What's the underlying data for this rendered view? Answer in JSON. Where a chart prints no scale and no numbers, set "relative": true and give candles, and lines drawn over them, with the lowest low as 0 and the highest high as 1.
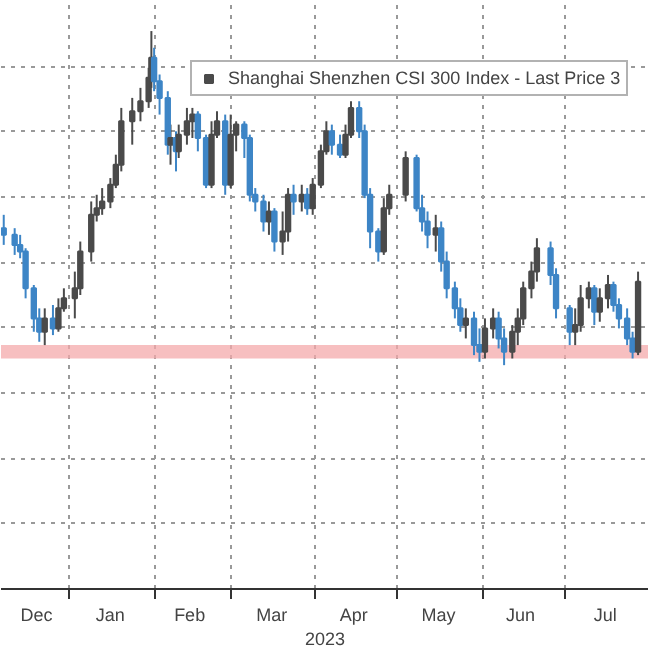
{
  "chart_data": {
    "type": "candlestick",
    "relative": true,
    "xlabel": "2023",
    "legend": "top right",
    "grid": true,
    "xlim": [
      "2022-12-07",
      "2023-08-01"
    ],
    "xticks": [
      {
        "value": "2022-12-20",
        "label": "Dec"
      },
      {
        "value": "2023-01-01",
        "label": null
      },
      {
        "value": "2023-01-16",
        "label": "Jan"
      },
      {
        "value": "2023-02-01",
        "label": null
      },
      {
        "value": "2023-02-14",
        "label": "Feb"
      },
      {
        "value": "2023-03-01",
        "label": null
      },
      {
        "value": "2023-03-16",
        "label": "Mar"
      },
      {
        "value": "2023-04-01",
        "label": null
      },
      {
        "value": "2023-04-15",
        "label": "Apr"
      },
      {
        "value": "2023-05-01",
        "label": null
      },
      {
        "value": "2023-05-16",
        "label": "May"
      },
      {
        "value": "2023-06-01",
        "label": null
      },
      {
        "value": "2023-06-15",
        "label": "Jun"
      },
      {
        "value": "2023-07-01",
        "label": null
      },
      {
        "value": "2023-07-16",
        "label": "Jul"
      }
    ],
    "bands": [
      {
        "axis": "y",
        "from": 0.02,
        "to": 0.06,
        "color": "#f4a9ab"
      }
    ],
    "series": [
      {
        "name": "Shanghai Shenzhen CSI 300 Index - Last Price 3",
        "color": "#4a4a4a",
        "x": [
          "2022-12-08",
          "2022-12-12",
          "2022-12-14",
          "2022-12-16",
          "2022-12-19",
          "2022-12-21",
          "2022-12-23",
          "2022-12-26",
          "2022-12-28",
          "2022-12-30",
          "2023-01-03",
          "2023-01-05",
          "2023-01-09",
          "2023-01-11",
          "2023-01-13",
          "2023-01-16",
          "2023-01-18",
          "2023-01-20",
          "2023-01-24",
          "2023-01-27",
          "2023-01-30",
          "2023-01-31",
          "2023-02-01",
          "2023-02-03",
          "2023-02-06",
          "2023-02-07",
          "2023-02-09",
          "2023-02-10",
          "2023-02-13",
          "2023-02-15",
          "2023-02-17",
          "2023-02-20",
          "2023-02-22",
          "2023-02-24",
          "2023-02-27",
          "2023-03-01",
          "2023-03-03",
          "2023-03-06",
          "2023-03-08",
          "2023-03-10",
          "2023-03-13",
          "2023-03-15",
          "2023-03-17",
          "2023-03-20",
          "2023-03-22",
          "2023-03-24",
          "2023-03-27",
          "2023-03-29",
          "2023-03-31",
          "2023-04-03",
          "2023-04-05",
          "2023-04-07",
          "2023-04-10",
          "2023-04-12",
          "2023-04-14",
          "2023-04-17",
          "2023-04-19",
          "2023-04-21",
          "2023-04-24",
          "2023-04-26",
          "2023-04-28",
          "2023-05-04",
          "2023-05-08",
          "2023-05-10",
          "2023-05-12",
          "2023-05-15",
          "2023-05-17",
          "2023-05-19",
          "2023-05-22",
          "2023-05-24",
          "2023-05-26",
          "2023-05-29",
          "2023-05-31",
          "2023-06-02",
          "2023-06-05",
          "2023-06-07",
          "2023-06-09",
          "2023-06-12",
          "2023-06-14",
          "2023-06-16",
          "2023-06-19",
          "2023-06-21",
          "2023-06-26",
          "2023-06-28",
          "2023-07-03",
          "2023-07-05",
          "2023-07-07",
          "2023-07-10",
          "2023-07-12",
          "2023-07-14",
          "2023-07-17",
          "2023-07-19",
          "2023-07-21",
          "2023-07-24",
          "2023-07-26",
          "2023-07-28"
        ],
        "ohlc": [
          [
            0.41,
            0.45,
            0.36,
            0.39
          ],
          [
            0.39,
            0.41,
            0.33,
            0.36
          ],
          [
            0.36,
            0.39,
            0.32,
            0.34
          ],
          [
            0.34,
            0.35,
            0.2,
            0.23
          ],
          [
            0.23,
            0.24,
            0.1,
            0.14
          ],
          [
            0.14,
            0.17,
            0.07,
            0.1
          ],
          [
            0.1,
            0.17,
            0.06,
            0.14
          ],
          [
            0.14,
            0.18,
            0.09,
            0.11
          ],
          [
            0.11,
            0.2,
            0.1,
            0.17
          ],
          [
            0.17,
            0.23,
            0.16,
            0.2
          ],
          [
            0.2,
            0.28,
            0.14,
            0.23
          ],
          [
            0.23,
            0.37,
            0.21,
            0.34
          ],
          [
            0.34,
            0.49,
            0.31,
            0.45
          ],
          [
            0.45,
            0.51,
            0.43,
            0.47
          ],
          [
            0.47,
            0.53,
            0.45,
            0.49
          ],
          [
            0.49,
            0.56,
            0.47,
            0.54
          ],
          [
            0.54,
            0.63,
            0.53,
            0.6
          ],
          [
            0.6,
            0.77,
            0.58,
            0.73
          ],
          [
            0.73,
            0.8,
            0.66,
            0.76
          ],
          [
            0.76,
            0.83,
            0.73,
            0.79
          ],
          [
            0.79,
            0.89,
            0.77,
            0.86
          ],
          [
            0.86,
            1.0,
            0.83,
            0.92
          ],
          [
            0.92,
            0.95,
            0.82,
            0.85
          ],
          [
            0.85,
            0.87,
            0.75,
            0.8
          ],
          [
            0.8,
            0.82,
            0.63,
            0.66
          ],
          [
            0.66,
            0.72,
            0.6,
            0.68
          ],
          [
            0.68,
            0.7,
            0.58,
            0.64
          ],
          [
            0.64,
            0.72,
            0.62,
            0.69
          ],
          [
            0.69,
            0.77,
            0.66,
            0.73
          ],
          [
            0.73,
            0.77,
            0.68,
            0.75
          ],
          [
            0.75,
            0.76,
            0.64,
            0.68
          ],
          [
            0.68,
            0.69,
            0.53,
            0.54
          ],
          [
            0.54,
            0.73,
            0.53,
            0.69
          ],
          [
            0.69,
            0.76,
            0.68,
            0.73
          ],
          [
            0.73,
            0.75,
            0.51,
            0.54
          ],
          [
            0.54,
            0.75,
            0.53,
            0.69
          ],
          [
            0.69,
            0.73,
            0.64,
            0.72
          ],
          [
            0.72,
            0.73,
            0.62,
            0.68
          ],
          [
            0.68,
            0.69,
            0.49,
            0.51
          ],
          [
            0.51,
            0.53,
            0.46,
            0.49
          ],
          [
            0.49,
            0.51,
            0.4,
            0.43
          ],
          [
            0.43,
            0.49,
            0.39,
            0.46
          ],
          [
            0.46,
            0.47,
            0.34,
            0.37
          ],
          [
            0.37,
            0.46,
            0.33,
            0.4
          ],
          [
            0.4,
            0.53,
            0.37,
            0.51
          ],
          [
            0.51,
            0.54,
            0.45,
            0.49
          ],
          [
            0.49,
            0.54,
            0.46,
            0.51
          ],
          [
            0.51,
            0.53,
            0.45,
            0.47
          ],
          [
            0.47,
            0.56,
            0.45,
            0.54
          ],
          [
            0.54,
            0.66,
            0.53,
            0.64
          ],
          [
            0.64,
            0.73,
            0.63,
            0.7
          ],
          [
            0.7,
            0.72,
            0.63,
            0.66
          ],
          [
            0.66,
            0.69,
            0.62,
            0.63
          ],
          [
            0.63,
            0.72,
            0.62,
            0.69
          ],
          [
            0.69,
            0.79,
            0.68,
            0.77
          ],
          [
            0.77,
            0.79,
            0.68,
            0.7
          ],
          [
            0.7,
            0.72,
            0.5,
            0.51
          ],
          [
            0.51,
            0.53,
            0.35,
            0.4
          ],
          [
            0.4,
            0.41,
            0.31,
            0.34
          ],
          [
            0.34,
            0.5,
            0.33,
            0.47
          ],
          [
            0.47,
            0.54,
            0.45,
            0.51
          ],
          [
            0.51,
            0.64,
            0.49,
            0.62
          ],
          [
            0.62,
            0.63,
            0.46,
            0.47
          ],
          [
            0.47,
            0.51,
            0.4,
            0.43
          ],
          [
            0.43,
            0.46,
            0.35,
            0.39
          ],
          [
            0.39,
            0.45,
            0.34,
            0.41
          ],
          [
            0.41,
            0.43,
            0.28,
            0.31
          ],
          [
            0.31,
            0.34,
            0.2,
            0.23
          ],
          [
            0.23,
            0.25,
            0.14,
            0.17
          ],
          [
            0.17,
            0.2,
            0.1,
            0.12
          ],
          [
            0.12,
            0.17,
            0.08,
            0.14
          ],
          [
            0.14,
            0.16,
            0.03,
            0.06
          ],
          [
            0.06,
            0.11,
            0.01,
            0.04
          ],
          [
            0.04,
            0.14,
            0.02,
            0.11
          ],
          [
            0.11,
            0.17,
            0.08,
            0.14
          ],
          [
            0.14,
            0.16,
            0.05,
            0.08
          ],
          [
            0.08,
            0.11,
            0.0,
            0.04
          ],
          [
            0.04,
            0.12,
            0.02,
            0.1
          ],
          [
            0.1,
            0.17,
            0.06,
            0.14
          ],
          [
            0.14,
            0.25,
            0.12,
            0.23
          ],
          [
            0.23,
            0.31,
            0.2,
            0.28
          ],
          [
            0.28,
            0.38,
            0.25,
            0.35
          ],
          [
            0.35,
            0.37,
            0.24,
            0.27
          ],
          [
            0.27,
            0.29,
            0.14,
            0.17
          ],
          [
            0.17,
            0.18,
            0.06,
            0.1
          ],
          [
            0.1,
            0.17,
            0.06,
            0.12
          ],
          [
            0.12,
            0.24,
            0.1,
            0.2
          ],
          [
            0.2,
            0.25,
            0.17,
            0.23
          ],
          [
            0.23,
            0.24,
            0.12,
            0.16
          ],
          [
            0.16,
            0.23,
            0.13,
            0.2
          ],
          [
            0.2,
            0.27,
            0.17,
            0.24
          ],
          [
            0.24,
            0.25,
            0.16,
            0.18
          ],
          [
            0.18,
            0.2,
            0.11,
            0.14
          ],
          [
            0.14,
            0.17,
            0.06,
            0.08
          ],
          [
            0.08,
            0.1,
            0.02,
            0.04
          ],
          [
            0.04,
            0.28,
            0.03,
            0.25
          ]
        ],
        "colors": [
          "#3d85c6",
          "#3d85c6",
          "#3d85c6",
          "#3d85c6",
          "#3d85c6",
          "#3d85c6",
          "#4a4a4a",
          "#3d85c6",
          "#4a4a4a",
          "#4a4a4a",
          "#4a4a4a",
          "#4a4a4a",
          "#4a4a4a",
          "#4a4a4a",
          "#4a4a4a",
          "#4a4a4a",
          "#4a4a4a",
          "#4a4a4a",
          "#4a4a4a",
          "#4a4a4a",
          "#4a4a4a",
          "#4a4a4a",
          "#3d85c6",
          "#3d85c6",
          "#3d85c6",
          "#4a4a4a",
          "#3d85c6",
          "#4a4a4a",
          "#4a4a4a",
          "#4a4a4a",
          "#3d85c6",
          "#3d85c6",
          "#4a4a4a",
          "#4a4a4a",
          "#3d85c6",
          "#4a4a4a",
          "#4a4a4a",
          "#3d85c6",
          "#3d85c6",
          "#3d85c6",
          "#3d85c6",
          "#4a4a4a",
          "#3d85c6",
          "#4a4a4a",
          "#4a4a4a",
          "#3d85c6",
          "#4a4a4a",
          "#3d85c6",
          "#4a4a4a",
          "#4a4a4a",
          "#4a4a4a",
          "#3d85c6",
          "#3d85c6",
          "#4a4a4a",
          "#4a4a4a",
          "#3d85c6",
          "#3d85c6",
          "#3d85c6",
          "#3d85c6",
          "#4a4a4a",
          "#4a4a4a",
          "#4a4a4a",
          "#3d85c6",
          "#3d85c6",
          "#3d85c6",
          "#4a4a4a",
          "#3d85c6",
          "#3d85c6",
          "#3d85c6",
          "#3d85c6",
          "#4a4a4a",
          "#3d85c6",
          "#3d85c6",
          "#4a4a4a",
          "#4a4a4a",
          "#3d85c6",
          "#3d85c6",
          "#4a4a4a",
          "#4a4a4a",
          "#4a4a4a",
          "#4a4a4a",
          "#4a4a4a",
          "#3d85c6",
          "#3d85c6",
          "#3d85c6",
          "#4a4a4a",
          "#4a4a4a",
          "#4a4a4a",
          "#3d85c6",
          "#4a4a4a",
          "#4a4a4a",
          "#3d85c6",
          "#3d85c6",
          "#3d85c6",
          "#3d85c6",
          "#4a4a4a"
        ]
      }
    ]
  }
}
